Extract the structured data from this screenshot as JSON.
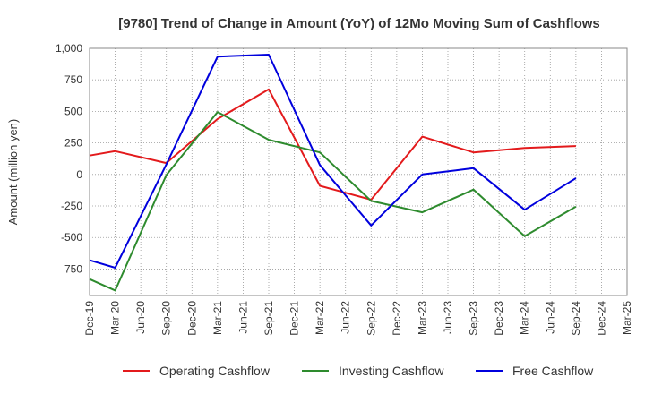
{
  "chart_data": {
    "type": "line",
    "title": "[9780]  Trend of Change in Amount (YoY) of 12Mo Moving Sum of Cashflows",
    "xlabel": "",
    "ylabel": "Amount (million yen)",
    "ylim": [
      -960,
      1000
    ],
    "yticks": [
      1000,
      750,
      500,
      250,
      0,
      -250,
      -500,
      -750
    ],
    "ytick_labels": [
      "1,000",
      "750",
      "500",
      "250",
      "0",
      "-250",
      "-500",
      "-750"
    ],
    "categories": [
      "Dec-19",
      "Mar-20",
      "Jun-20",
      "Sep-20",
      "Dec-20",
      "Mar-21",
      "Jun-21",
      "Sep-21",
      "Dec-21",
      "Mar-22",
      "Jun-22",
      "Sep-22",
      "Dec-22",
      "Mar-23",
      "Jun-23",
      "Sep-23",
      "Dec-23",
      "Mar-24",
      "Jun-24",
      "Sep-24",
      "Dec-24",
      "Mar-25"
    ],
    "grid": true,
    "legend_position": "bottom",
    "series": [
      {
        "name": "Operating Cashflow",
        "color": "#e31a1c",
        "values": [
          150,
          185,
          null,
          90,
          null,
          440,
          null,
          675,
          null,
          -90,
          null,
          -200,
          null,
          300,
          null,
          175,
          null,
          210,
          null,
          225,
          null,
          null
        ]
      },
      {
        "name": "Investing Cashflow",
        "color": "#2e8b2e",
        "values": [
          -830,
          -920,
          null,
          -5,
          null,
          495,
          null,
          275,
          null,
          175,
          null,
          -210,
          null,
          -300,
          null,
          -120,
          null,
          -490,
          null,
          -255,
          null,
          null
        ]
      },
      {
        "name": "Free Cashflow",
        "color": "#0000dd",
        "values": [
          -680,
          -740,
          null,
          80,
          null,
          935,
          null,
          950,
          null,
          75,
          null,
          -405,
          null,
          0,
          null,
          50,
          null,
          -280,
          null,
          -30,
          null,
          null
        ]
      }
    ]
  }
}
